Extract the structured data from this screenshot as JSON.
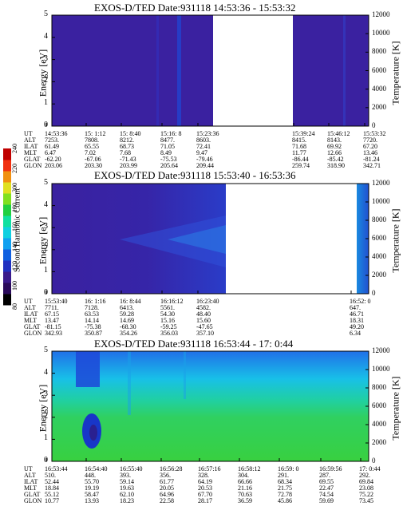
{
  "colors": {
    "panel1_background": "#3a21a0",
    "panel3_background": "#22a8f0",
    "gap": "#ffffff"
  },
  "colorbar": {
    "label": "Second Harmonic Current",
    "ticks": [
      "80",
      "100",
      "120",
      "140",
      "160",
      "180",
      "200",
      "220",
      "240"
    ],
    "colors": [
      "#000000",
      "#2a0a5a",
      "#3a1a8a",
      "#2030c0",
      "#1060e0",
      "#10a0f0",
      "#10d0e0",
      "#10e0a0",
      "#20d040",
      "#80e020",
      "#e0e020",
      "#f09010",
      "#f03010",
      "#c00000"
    ]
  },
  "table_row_labels": [
    "UT",
    "ALT",
    "ILAT",
    "MLT",
    "GLAT",
    "GLON"
  ],
  "panels": [
    {
      "title": "EXOS-D/TED   Date:931118   14:53:36 - 15:53:32",
      "y_label": "Energy [eV]",
      "y_right_label": "Temperature [K]",
      "y_ticks": [
        "0",
        "1",
        "2",
        "3",
        "4",
        "5"
      ],
      "y_right_ticks": [
        "0",
        "2000",
        "4000",
        "6000",
        "8000",
        "10000",
        "12000"
      ],
      "columns": [
        [
          "14:53:36",
          "7253.",
          "61.49",
          "6.47",
          "-62.20",
          "203.06"
        ],
        [
          "15: 1:12",
          "7808.",
          "65.55",
          "7.02",
          "-67.06",
          "203.30"
        ],
        [
          "15: 8:40",
          "8212.",
          "68.73",
          "7.68",
          "-71.43",
          "203.99"
        ],
        [
          "15:16: 8",
          "8477.",
          "71.05",
          "8.49",
          "-75.53",
          "205.64"
        ],
        [
          "15:23:36",
          "8603.",
          "72.41",
          "9.47",
          "-79.46",
          "209.44"
        ],
        [
          "15:39:24",
          "8415.",
          "71.68",
          "11.77",
          "-86.44",
          "259.74"
        ],
        [
          "15:46:12",
          "8143.",
          "69.92",
          "12.66",
          "-85.42",
          "318.90"
        ],
        [
          "15:53:32",
          "7720.",
          "67.20",
          "13.46",
          "-81.24",
          "342.71"
        ]
      ]
    },
    {
      "title": "EXOS-D/TED   Date:931118   15:53:40 - 16:53:36",
      "y_label": "Energy [eV]",
      "y_right_label": "Temperature [K]",
      "y_ticks": [
        "0",
        "1",
        "2",
        "3",
        "4",
        "5"
      ],
      "y_right_ticks": [
        "0",
        "2000",
        "4000",
        "6000",
        "8000",
        "10000",
        "12000"
      ],
      "columns": [
        [
          "15:53:40",
          "7711.",
          "67.15",
          "13.47",
          "-81.15",
          "342.93"
        ],
        [
          "16: 1:16",
          "7128.",
          "63.53",
          "14.14",
          "-75.38",
          "350.87"
        ],
        [
          "16: 8:44",
          "6413.",
          "59.28",
          "14.69",
          "-68.30",
          "354.26"
        ],
        [
          "16:16:12",
          "5561.",
          "54.30",
          "15.16",
          "-59.25",
          "356.03"
        ],
        [
          "16:23:40",
          "4582.",
          "48.40",
          "15.60",
          "-47.65",
          "357.10"
        ],
        [
          "16:52: 0",
          "647.",
          "46.71",
          "18.31",
          "49.20",
          "6.34"
        ]
      ]
    },
    {
      "title": "EXOS-D/TED   Date:931118   16:53:44 - 17: 0:44",
      "y_label": "Energy [eV]",
      "y_right_label": "Temperature [K]",
      "y_ticks": [
        "0",
        "1",
        "2",
        "3",
        "4",
        "5"
      ],
      "y_right_ticks": [
        "0",
        "2000",
        "4000",
        "6000",
        "8000",
        "10000",
        "12000"
      ],
      "columns": [
        [
          "16:53:44",
          "510.",
          "52.44",
          "18.84",
          "55.12",
          "10.77"
        ],
        [
          "16:54:40",
          "448.",
          "55.70",
          "19.19",
          "58.47",
          "13.93"
        ],
        [
          "16:55:40",
          "393.",
          "59.14",
          "19.63",
          "62.10",
          "18.23"
        ],
        [
          "16:56:28",
          "356.",
          "61.77",
          "20.05",
          "64.96",
          "22.58"
        ],
        [
          "16:57:16",
          "328.",
          "64.19",
          "20.53",
          "67.70",
          "28.17"
        ],
        [
          "16:58:12",
          "304.",
          "66.66",
          "21.16",
          "70.63",
          "36.59"
        ],
        [
          "16:59: 0",
          "291.",
          "68.34",
          "21.75",
          "72.78",
          "45.86"
        ],
        [
          "16:59:56",
          "287.",
          "69.55",
          "22.47",
          "74.54",
          "59.69"
        ],
        [
          "17: 0:44",
          "292.",
          "69.84",
          "23.08",
          "75.22",
          "73.45"
        ]
      ]
    }
  ],
  "chart_data": [
    {
      "type": "heatmap",
      "title": "EXOS-D/TED   Date:931118   14:53:36 - 15:53:32",
      "ylabel": "Energy [eV]",
      "ylim": [
        0,
        5
      ],
      "y2label": "Temperature [K]",
      "y2lim": [
        0,
        12000
      ],
      "x_ticks": [
        "14:53:36",
        "15: 1:12",
        "15: 8:40",
        "15:16: 8",
        "15:23:36",
        "15:39:24",
        "15:46:12",
        "15:53:32"
      ],
      "data_gap": [
        "15:23:36",
        "15:39:24"
      ]
    },
    {
      "type": "heatmap",
      "title": "EXOS-D/TED   Date:931118   15:53:40 - 16:53:36",
      "ylabel": "Energy [eV]",
      "ylim": [
        0,
        5
      ],
      "y2label": "Temperature [K]",
      "y2lim": [
        0,
        12000
      ],
      "x_ticks": [
        "15:53:40",
        "16: 1:16",
        "16: 8:44",
        "16:16:12",
        "16:23:40",
        "16:52: 0"
      ],
      "data_gap": [
        "16:23:40",
        "16:52: 0"
      ]
    },
    {
      "type": "heatmap",
      "title": "EXOS-D/TED   Date:931118   16:53:44 - 17: 0:44",
      "ylabel": "Energy [eV]",
      "ylim": [
        0,
        5
      ],
      "y2label": "Temperature [K]",
      "y2lim": [
        0,
        12000
      ],
      "x_ticks": [
        "16:53:44",
        "16:54:40",
        "16:55:40",
        "16:56:28",
        "16:57:16",
        "16:58:12",
        "16:59: 0",
        "16:59:56",
        "17: 0:44"
      ]
    }
  ]
}
